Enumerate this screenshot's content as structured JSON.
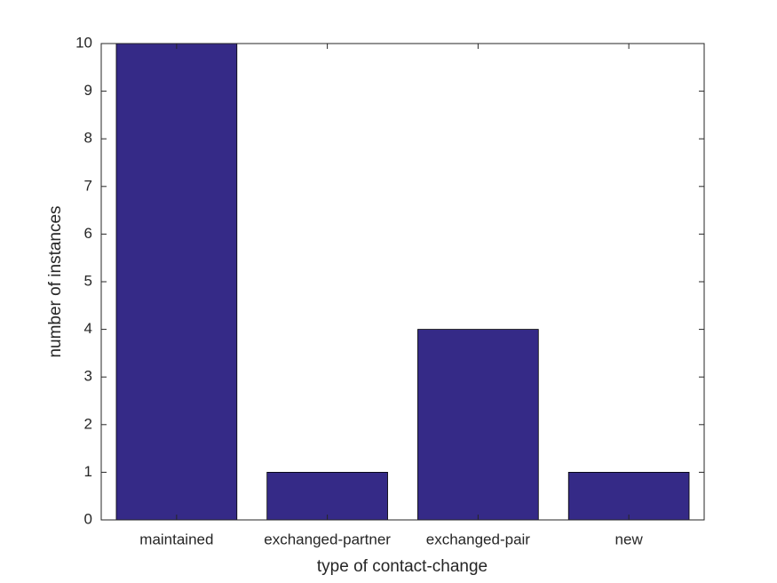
{
  "chart_data": {
    "type": "bar",
    "categories": [
      "maintained",
      "exchanged-partner",
      "exchanged-pair",
      "new"
    ],
    "values": [
      10,
      1,
      4,
      1
    ],
    "color": "#352a87",
    "xlabel": "type of contact-change",
    "ylabel": "number of instances",
    "ylim": [
      0,
      10
    ],
    "yticks": [
      0,
      1,
      2,
      3,
      4,
      5,
      6,
      7,
      8,
      9,
      10
    ]
  }
}
